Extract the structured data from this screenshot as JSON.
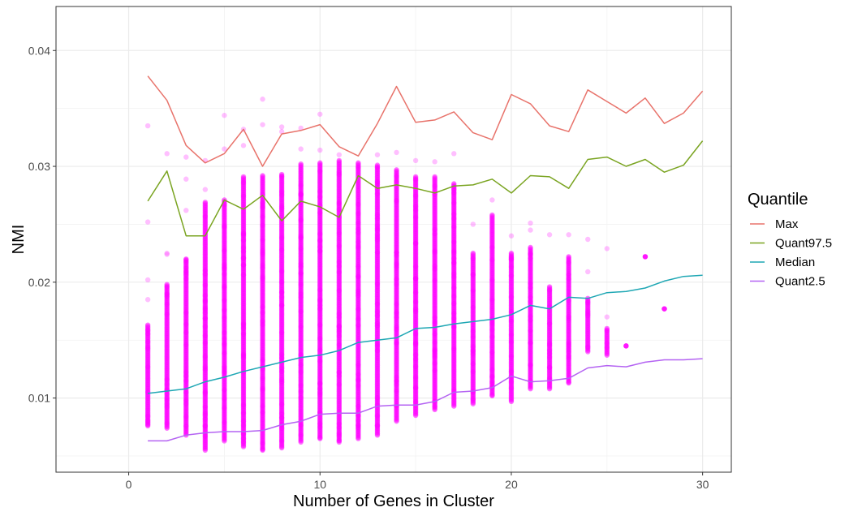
{
  "chart_data": {
    "type": "scatter",
    "title": "",
    "xlabel": "Number of Genes in Cluster",
    "ylabel": "NMI",
    "xlim": [
      -3.8,
      31.5
    ],
    "ylim": [
      0.0036,
      0.0438
    ],
    "xticks": [
      0,
      10,
      20,
      30
    ],
    "xtick_labels": [
      "0",
      "10",
      "20",
      "30"
    ],
    "yticks": [
      0.01,
      0.02,
      0.03,
      0.04
    ],
    "ytick_labels": [
      "0.01",
      "0.02",
      "0.03",
      "0.04"
    ],
    "grid": true,
    "legend": {
      "title": "Quantile",
      "position": "right"
    },
    "points": {
      "color": "#ff00ff",
      "columns": [
        {
          "x": 1,
          "ymin": 0.0076,
          "ymax": 0.0163,
          "outliers": [
            0.0335,
            0.0252,
            0.0202,
            0.0185
          ]
        },
        {
          "x": 2,
          "ymin": 0.0074,
          "ymax": 0.0198,
          "outliers": [
            0.0311,
            0.0225,
            0.0224
          ]
        },
        {
          "x": 3,
          "ymin": 0.0068,
          "ymax": 0.022,
          "outliers": [
            0.0308,
            0.0289,
            0.0262
          ]
        },
        {
          "x": 4,
          "ymin": 0.0055,
          "ymax": 0.0269,
          "outliers": [
            0.0305,
            0.028
          ]
        },
        {
          "x": 5,
          "ymin": 0.0063,
          "ymax": 0.0271,
          "outliers": [
            0.0344,
            0.0315
          ]
        },
        {
          "x": 6,
          "ymin": 0.0058,
          "ymax": 0.0291,
          "outliers": [
            0.0332,
            0.0318
          ]
        },
        {
          "x": 7,
          "ymin": 0.0055,
          "ymax": 0.0292,
          "outliers": [
            0.0358,
            0.0336
          ]
        },
        {
          "x": 8,
          "ymin": 0.0057,
          "ymax": 0.0293,
          "outliers": [
            0.0334,
            0.033
          ]
        },
        {
          "x": 9,
          "ymin": 0.0062,
          "ymax": 0.0302,
          "outliers": [
            0.0333,
            0.0315
          ]
        },
        {
          "x": 10,
          "ymin": 0.0065,
          "ymax": 0.0303,
          "outliers": [
            0.0345,
            0.0314
          ]
        },
        {
          "x": 11,
          "ymin": 0.0062,
          "ymax": 0.0305,
          "outliers": [
            0.031
          ]
        },
        {
          "x": 12,
          "ymin": 0.0065,
          "ymax": 0.0303,
          "outliers": []
        },
        {
          "x": 13,
          "ymin": 0.0068,
          "ymax": 0.0301,
          "outliers": [
            0.031
          ]
        },
        {
          "x": 14,
          "ymin": 0.008,
          "ymax": 0.0297,
          "outliers": [
            0.0312
          ]
        },
        {
          "x": 15,
          "ymin": 0.0085,
          "ymax": 0.0291,
          "outliers": [
            0.0305
          ]
        },
        {
          "x": 16,
          "ymin": 0.009,
          "ymax": 0.0291,
          "outliers": [
            0.0304
          ]
        },
        {
          "x": 17,
          "ymin": 0.0093,
          "ymax": 0.0285,
          "outliers": [
            0.0311
          ]
        },
        {
          "x": 18,
          "ymin": 0.0095,
          "ymax": 0.0225,
          "outliers": [
            0.025
          ]
        },
        {
          "x": 19,
          "ymin": 0.0102,
          "ymax": 0.0258,
          "outliers": [
            0.0271
          ]
        },
        {
          "x": 20,
          "ymin": 0.0097,
          "ymax": 0.0225,
          "outliers": [
            0.024
          ]
        },
        {
          "x": 21,
          "ymin": 0.0108,
          "ymax": 0.023,
          "outliers": [
            0.0251,
            0.0245
          ]
        },
        {
          "x": 22,
          "ymin": 0.0108,
          "ymax": 0.0196,
          "outliers": [
            0.0241
          ]
        },
        {
          "x": 23,
          "ymin": 0.0113,
          "ymax": 0.0222,
          "outliers": [
            0.0241
          ]
        },
        {
          "x": 24,
          "ymin": 0.014,
          "ymax": 0.0186,
          "outliers": [
            0.0237,
            0.0209
          ]
        },
        {
          "x": 25,
          "ymin": 0.0137,
          "ymax": 0.016,
          "outliers": [
            0.0229,
            0.017
          ]
        },
        {
          "x": 26,
          "ymin": 0.0145,
          "ymax": 0.0145,
          "outliers": []
        },
        {
          "x": 27,
          "ymin": 0.0222,
          "ymax": 0.0222,
          "outliers": []
        },
        {
          "x": 28,
          "ymin": 0.0177,
          "ymax": 0.0177,
          "outliers": []
        }
      ]
    },
    "series": [
      {
        "name": "Max",
        "color": "#e8736b",
        "x": [
          1,
          2,
          3,
          4,
          5,
          6,
          7,
          8,
          9,
          10,
          11,
          12,
          13,
          14,
          15,
          16,
          17,
          18,
          19,
          20,
          21,
          22,
          23,
          24,
          25,
          26,
          27,
          28,
          29,
          30
        ],
        "values": [
          0.0378,
          0.0357,
          0.0318,
          0.0303,
          0.0311,
          0.0332,
          0.03,
          0.0328,
          0.0331,
          0.0336,
          0.0317,
          0.0309,
          0.0337,
          0.0369,
          0.0338,
          0.034,
          0.0347,
          0.0329,
          0.0323,
          0.0362,
          0.0354,
          0.0335,
          0.033,
          0.0366,
          0.0356,
          0.0346,
          0.0359,
          0.0337,
          0.0346,
          0.0365
        ]
      },
      {
        "name": "Quant97.5",
        "color": "#7aa421",
        "x": [
          1,
          2,
          3,
          4,
          5,
          6,
          7,
          8,
          9,
          10,
          11,
          12,
          13,
          14,
          15,
          16,
          17,
          18,
          19,
          20,
          21,
          22,
          23,
          24,
          25,
          26,
          27,
          28,
          29,
          30
        ],
        "values": [
          0.027,
          0.0296,
          0.024,
          0.024,
          0.0271,
          0.0263,
          0.0275,
          0.0253,
          0.027,
          0.0265,
          0.0256,
          0.0292,
          0.0281,
          0.0284,
          0.0281,
          0.0277,
          0.0283,
          0.0284,
          0.0289,
          0.0277,
          0.0292,
          0.0291,
          0.0281,
          0.0306,
          0.0308,
          0.03,
          0.0306,
          0.0295,
          0.0301,
          0.0322
        ]
      },
      {
        "name": "Median",
        "color": "#1fa7b4",
        "x": [
          1,
          2,
          3,
          4,
          5,
          6,
          7,
          8,
          9,
          10,
          11,
          12,
          13,
          14,
          15,
          16,
          17,
          18,
          19,
          20,
          21,
          22,
          23,
          24,
          25,
          26,
          27,
          28,
          29,
          30
        ],
        "values": [
          0.0104,
          0.0106,
          0.0108,
          0.0114,
          0.0118,
          0.0123,
          0.0127,
          0.0131,
          0.0135,
          0.0137,
          0.0141,
          0.0148,
          0.015,
          0.0152,
          0.016,
          0.0161,
          0.0164,
          0.0166,
          0.0168,
          0.0172,
          0.018,
          0.0177,
          0.0187,
          0.0186,
          0.0191,
          0.0192,
          0.0195,
          0.0201,
          0.0205,
          0.0206
        ]
      },
      {
        "name": "Quant2.5",
        "color": "#b463f2",
        "x": [
          1,
          2,
          3,
          4,
          5,
          6,
          7,
          8,
          9,
          10,
          11,
          12,
          13,
          14,
          15,
          16,
          17,
          18,
          19,
          20,
          21,
          22,
          23,
          24,
          25,
          26,
          27,
          28,
          29,
          30
        ],
        "values": [
          0.0063,
          0.0063,
          0.0068,
          0.007,
          0.0071,
          0.0071,
          0.0072,
          0.0077,
          0.008,
          0.0086,
          0.0087,
          0.0087,
          0.0093,
          0.0094,
          0.0094,
          0.0097,
          0.0105,
          0.0106,
          0.0109,
          0.0119,
          0.0114,
          0.0115,
          0.0117,
          0.0126,
          0.0128,
          0.0127,
          0.0131,
          0.0133,
          0.0133,
          0.0134
        ]
      }
    ]
  }
}
